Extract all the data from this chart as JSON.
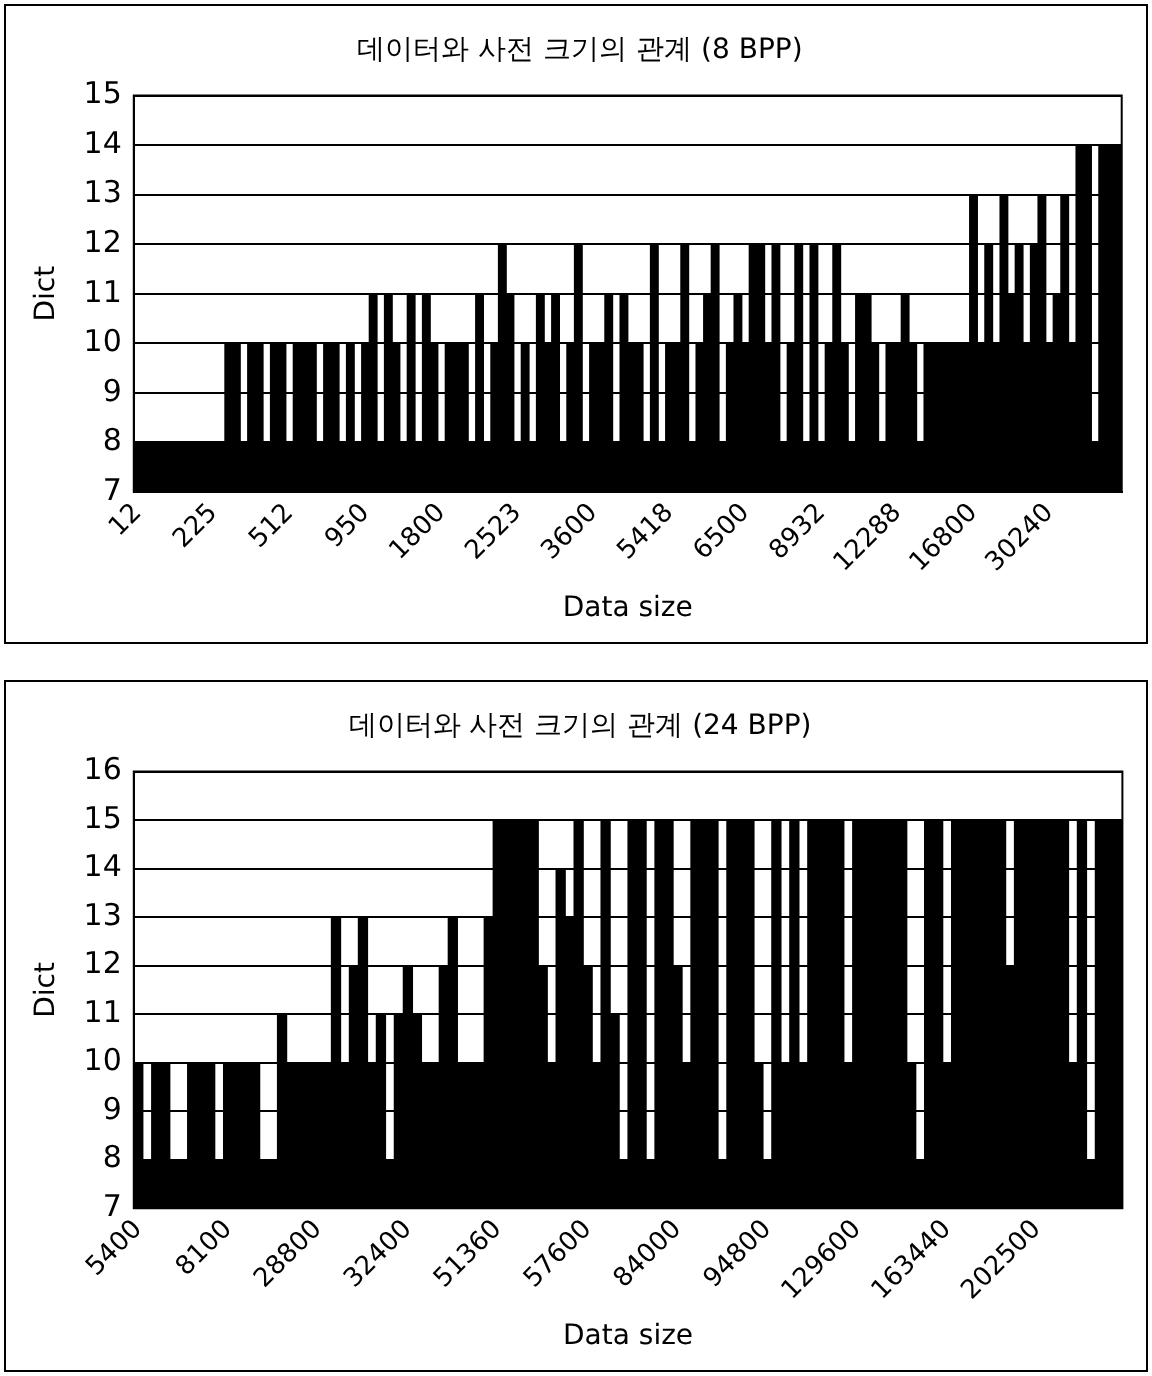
{
  "chart_data": [
    {
      "type": "bar",
      "title": "데이터와 사전 크기의 관계 (8 BPP)",
      "xlabel": "Data size",
      "ylabel": "Dict",
      "color": "#000000",
      "ylim": [
        7,
        15
      ],
      "yticks": [
        7,
        8,
        9,
        10,
        11,
        12,
        13,
        14,
        15
      ],
      "grid": "y",
      "categories": [
        "12",
        null,
        null,
        null,
        null,
        null,
        null,
        null,
        null,
        null,
        "225",
        null,
        null,
        null,
        null,
        null,
        null,
        null,
        null,
        null,
        "512",
        null,
        null,
        null,
        null,
        null,
        null,
        null,
        null,
        null,
        "950",
        null,
        null,
        null,
        null,
        null,
        null,
        null,
        null,
        null,
        "1800",
        null,
        null,
        null,
        null,
        null,
        null,
        null,
        null,
        null,
        "2523",
        null,
        null,
        null,
        null,
        null,
        null,
        null,
        null,
        null,
        "3600",
        null,
        null,
        null,
        null,
        null,
        null,
        null,
        null,
        null,
        "5418",
        null,
        null,
        null,
        null,
        null,
        null,
        null,
        null,
        null,
        "6500",
        null,
        null,
        null,
        null,
        null,
        null,
        null,
        null,
        null,
        "8932",
        null,
        null,
        null,
        null,
        null,
        null,
        null,
        null,
        null,
        "12288",
        null,
        null,
        null,
        null,
        null,
        null,
        null,
        null,
        null,
        "16800",
        null,
        null,
        null,
        null,
        null,
        null,
        null,
        null,
        null,
        "30240",
        null,
        null,
        null,
        null,
        null,
        null,
        null,
        null,
        null
      ],
      "values": [
        8,
        8,
        8,
        8,
        8,
        8,
        8,
        8,
        8,
        8,
        8,
        8,
        10,
        10,
        8,
        10,
        10,
        8,
        10,
        10,
        8,
        10,
        10,
        10,
        8,
        10,
        10,
        8,
        10,
        8,
        10,
        11,
        8,
        11,
        10,
        8,
        11,
        8,
        11,
        10,
        8,
        10,
        10,
        10,
        8,
        11,
        8,
        10,
        12,
        11,
        8,
        10,
        8,
        11,
        10,
        11,
        8,
        10,
        12,
        8,
        10,
        10,
        11,
        8,
        11,
        10,
        10,
        8,
        12,
        8,
        10,
        10,
        12,
        8,
        10,
        11,
        12,
        8,
        10,
        11,
        10,
        12,
        12,
        10,
        12,
        8,
        10,
        12,
        8,
        12,
        8,
        10,
        12,
        10,
        8,
        11,
        11,
        10,
        8,
        10,
        10,
        11,
        10,
        8,
        10,
        10,
        10,
        10,
        10,
        10,
        13,
        10,
        12,
        10,
        13,
        11,
        12,
        10,
        12,
        13,
        10,
        11,
        13,
        10,
        14,
        14,
        8,
        14,
        14,
        14
      ]
    },
    {
      "type": "bar",
      "title": "데이터와 사전 크기의 관계 (24 BPP)",
      "xlabel": "Data size",
      "ylabel": "Dict",
      "color": "#000000",
      "ylim": [
        7,
        16
      ],
      "yticks": [
        7,
        8,
        9,
        10,
        11,
        12,
        13,
        14,
        15,
        16
      ],
      "grid": "y",
      "categories": [
        "5400",
        null,
        null,
        null,
        null,
        null,
        null,
        null,
        null,
        null,
        "8100",
        null,
        null,
        null,
        null,
        null,
        null,
        null,
        null,
        null,
        "28800",
        null,
        null,
        null,
        null,
        null,
        null,
        null,
        null,
        null,
        "32400",
        null,
        null,
        null,
        null,
        null,
        null,
        null,
        null,
        null,
        "51360",
        null,
        null,
        null,
        null,
        null,
        null,
        null,
        null,
        null,
        "57600",
        null,
        null,
        null,
        null,
        null,
        null,
        null,
        null,
        null,
        "84000",
        null,
        null,
        null,
        null,
        null,
        null,
        null,
        null,
        null,
        "94800",
        null,
        null,
        null,
        null,
        null,
        null,
        null,
        null,
        null,
        "129600",
        null,
        null,
        null,
        null,
        null,
        null,
        null,
        null,
        null,
        "163440",
        null,
        null,
        null,
        null,
        null,
        null,
        null,
        null,
        null,
        "202500",
        null,
        null,
        null,
        null,
        null,
        null,
        null,
        null,
        null
      ],
      "values": [
        10,
        8,
        10,
        10,
        8,
        8,
        10,
        10,
        10,
        8,
        10,
        10,
        10,
        10,
        8,
        8,
        11,
        10,
        10,
        10,
        10,
        10,
        13,
        10,
        12,
        13,
        10,
        11,
        8,
        11,
        12,
        11,
        10,
        10,
        12,
        13,
        10,
        10,
        10,
        13,
        15,
        15,
        15,
        15,
        15,
        12,
        10,
        14,
        13,
        15,
        12,
        10,
        15,
        11,
        8,
        15,
        15,
        8,
        15,
        15,
        12,
        10,
        15,
        15,
        15,
        8,
        15,
        15,
        15,
        10,
        8,
        15,
        10,
        15,
        10,
        15,
        15,
        15,
        15,
        10,
        15,
        15,
        15,
        15,
        15,
        15,
        10,
        8,
        15,
        15,
        10,
        15,
        15,
        15,
        15,
        15,
        15,
        12,
        15,
        15,
        15,
        15,
        15,
        15,
        10,
        15,
        8,
        15,
        15,
        15
      ]
    }
  ]
}
